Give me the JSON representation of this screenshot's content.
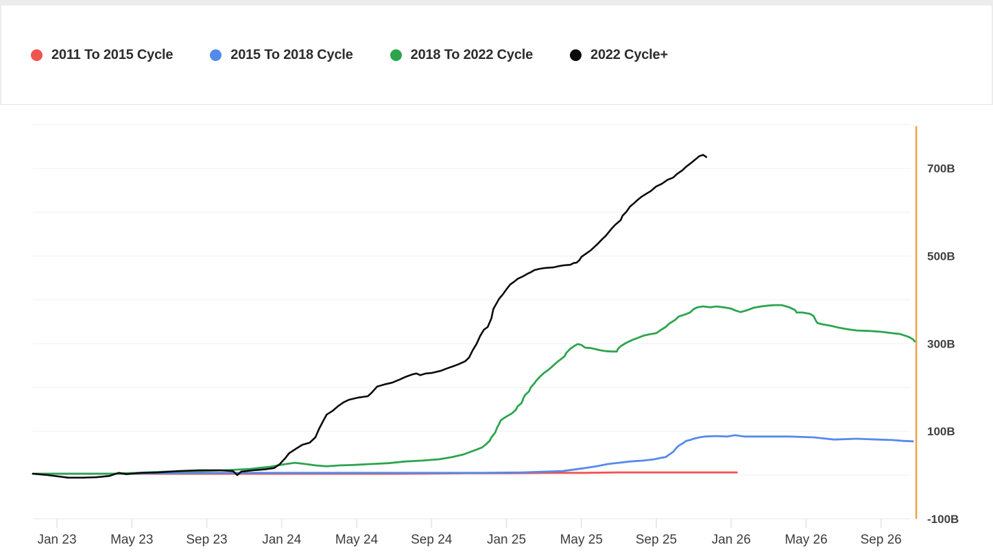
{
  "legend": {
    "items": [
      {
        "label": "2011 To 2015 Cycle",
        "color": "#f0544f"
      },
      {
        "label": "2015 To 2018 Cycle",
        "color": "#548aeb"
      },
      {
        "label": "2018 To 2022 Cycle",
        "color": "#2ca44e"
      },
      {
        "label": "2022 Cycle+",
        "color": "#0a0a0a"
      }
    ]
  },
  "chart_data": {
    "type": "line",
    "title": "",
    "xlabel": "",
    "ylabel": "",
    "unit": "B = billions",
    "legend_position": "top",
    "grid": true,
    "ylim": [
      -100,
      800
    ],
    "x_axis": {
      "tick_labels": [
        "Jan 23",
        "May 23",
        "Sep 23",
        "Jan 24",
        "May 24",
        "Sep 24",
        "Jan 25",
        "May 25",
        "Sep 25",
        "Jan 26",
        "May 26",
        "Sep 26"
      ],
      "months_per_tick": 4
    },
    "y_axis": {
      "tick_labels": [
        "700B",
        "500B",
        "300B",
        "100B",
        "-100B"
      ],
      "tick_values": [
        700,
        500,
        300,
        100,
        -100
      ],
      "grid_values": [
        800,
        700,
        600,
        500,
        400,
        300,
        200,
        100,
        0,
        -100
      ]
    },
    "marker_line": {
      "name": "cycle-end-marker",
      "color": "#e8a640",
      "position_months_from_first_tick": 45.88
    },
    "series": [
      {
        "name": "2011 To 2015 Cycle",
        "color": "#f0544f",
        "points_m_v": [
          [
            -1.28,
            3
          ],
          [
            2,
            3
          ],
          [
            6,
            3
          ],
          [
            10,
            3
          ],
          [
            14,
            3
          ],
          [
            18,
            3
          ],
          [
            22,
            4
          ],
          [
            24,
            4
          ],
          [
            26.3,
            5
          ],
          [
            28.1,
            5
          ],
          [
            29.9,
            6
          ],
          [
            31.7,
            6
          ],
          [
            33.6,
            6
          ],
          [
            35,
            6
          ],
          [
            36.3,
            6
          ]
        ]
      },
      {
        "name": "2015 To 2018 Cycle",
        "color": "#548aeb",
        "points_m_v": [
          [
            -1.28,
            3
          ],
          [
            2.4,
            3
          ],
          [
            7.9,
            5
          ],
          [
            13.4,
            5
          ],
          [
            18.9,
            5
          ],
          [
            22.6,
            5
          ],
          [
            24.8,
            6
          ],
          [
            27,
            9
          ],
          [
            28.2,
            16
          ],
          [
            28.8,
            20
          ],
          [
            29.4,
            25
          ],
          [
            30,
            28
          ],
          [
            30.6,
            31
          ],
          [
            31.3,
            33
          ],
          [
            31.9,
            36
          ],
          [
            32.2,
            39
          ],
          [
            32.5,
            41
          ],
          [
            32.7,
            47
          ],
          [
            32.9,
            53
          ],
          [
            33.1,
            63
          ],
          [
            33.2,
            67
          ],
          [
            33.4,
            72
          ],
          [
            33.6,
            78
          ],
          [
            33.8,
            80
          ],
          [
            34,
            83
          ],
          [
            34.3,
            86
          ],
          [
            34.6,
            88
          ],
          [
            35.2,
            89
          ],
          [
            35.8,
            88
          ],
          [
            36.2,
            91
          ],
          [
            36.7,
            88
          ],
          [
            37.2,
            88
          ],
          [
            38,
            88
          ],
          [
            39.1,
            88
          ],
          [
            40.4,
            86
          ],
          [
            41.5,
            81
          ],
          [
            42.7,
            83
          ],
          [
            43.8,
            81
          ],
          [
            44.6,
            80
          ],
          [
            45.2,
            78
          ],
          [
            45.7,
            77
          ]
        ]
      },
      {
        "name": "2018 To 2022 Cycle",
        "color": "#2ca44e",
        "points_m_v": [
          [
            -1.28,
            3
          ],
          [
            -0.1,
            3
          ],
          [
            1.4,
            3
          ],
          [
            2.8,
            3
          ],
          [
            4.3,
            5
          ],
          [
            5.9,
            8
          ],
          [
            7.6,
            9
          ],
          [
            9,
            11
          ],
          [
            10.3,
            14
          ],
          [
            11.4,
            19
          ],
          [
            12.2,
            25
          ],
          [
            12.7,
            28
          ],
          [
            13.3,
            25
          ],
          [
            13.8,
            22
          ],
          [
            14.4,
            20
          ],
          [
            15.1,
            22
          ],
          [
            15.8,
            23
          ],
          [
            16.7,
            25
          ],
          [
            17.7,
            27
          ],
          [
            18.6,
            31
          ],
          [
            19.5,
            33
          ],
          [
            20.4,
            36
          ],
          [
            21.1,
            41
          ],
          [
            21.7,
            47
          ],
          [
            22.2,
            55
          ],
          [
            22.4,
            58
          ],
          [
            22.7,
            63
          ],
          [
            22.9,
            70
          ],
          [
            23.1,
            78
          ],
          [
            23.2,
            86
          ],
          [
            23.4,
            97
          ],
          [
            23.5,
            108
          ],
          [
            23.6,
            116
          ],
          [
            23.7,
            125
          ],
          [
            23.9,
            131
          ],
          [
            24.1,
            136
          ],
          [
            24.3,
            141
          ],
          [
            24.5,
            149
          ],
          [
            24.6,
            157
          ],
          [
            24.8,
            164
          ],
          [
            24.9,
            175
          ],
          [
            25,
            183
          ],
          [
            25.2,
            191
          ],
          [
            25.3,
            200
          ],
          [
            25.5,
            210
          ],
          [
            25.6,
            216
          ],
          [
            25.8,
            225
          ],
          [
            26,
            233
          ],
          [
            26.2,
            239
          ],
          [
            26.4,
            246
          ],
          [
            26.6,
            254
          ],
          [
            26.8,
            261
          ],
          [
            27.1,
            271
          ],
          [
            27.2,
            279
          ],
          [
            27.4,
            288
          ],
          [
            27.6,
            294
          ],
          [
            27.8,
            299
          ],
          [
            28,
            297
          ],
          [
            28.2,
            291
          ],
          [
            28.5,
            290
          ],
          [
            28.7,
            288
          ],
          [
            29,
            285
          ],
          [
            29.3,
            283
          ],
          [
            29.6,
            282
          ],
          [
            29.9,
            282
          ],
          [
            29.95,
            288
          ],
          [
            30.1,
            294
          ],
          [
            30.4,
            302
          ],
          [
            30.7,
            308
          ],
          [
            31,
            313
          ],
          [
            31.3,
            318
          ],
          [
            31.6,
            321
          ],
          [
            32,
            324
          ],
          [
            32.2,
            330
          ],
          [
            32.5,
            338
          ],
          [
            32.7,
            346
          ],
          [
            33,
            354
          ],
          [
            33.2,
            362
          ],
          [
            33.5,
            366
          ],
          [
            33.8,
            371
          ],
          [
            34,
            379
          ],
          [
            34.2,
            383
          ],
          [
            34.5,
            385
          ],
          [
            34.9,
            383
          ],
          [
            35.2,
            385
          ],
          [
            35.6,
            383
          ],
          [
            36,
            380
          ],
          [
            36.2,
            376
          ],
          [
            36.5,
            372
          ],
          [
            36.9,
            377
          ],
          [
            37.2,
            382
          ],
          [
            37.6,
            385
          ],
          [
            38,
            387
          ],
          [
            38.3,
            388
          ],
          [
            38.7,
            388
          ],
          [
            39.1,
            383
          ],
          [
            39.4,
            377
          ],
          [
            39.5,
            371
          ],
          [
            39.8,
            371
          ],
          [
            40.2,
            368
          ],
          [
            40.4,
            363
          ],
          [
            40.5,
            354
          ],
          [
            40.6,
            347
          ],
          [
            40.9,
            344
          ],
          [
            41.3,
            341
          ],
          [
            41.7,
            337
          ],
          [
            42.2,
            333
          ],
          [
            42.7,
            330
          ],
          [
            43.4,
            329
          ],
          [
            44,
            327
          ],
          [
            44.6,
            324
          ],
          [
            45,
            322
          ],
          [
            45.3,
            318
          ],
          [
            45.5,
            315
          ],
          [
            45.7,
            310
          ],
          [
            45.8,
            305
          ]
        ]
      },
      {
        "name": "2022 Cycle+",
        "color": "#0a0a0a",
        "points_m_v": [
          [
            -1.28,
            3
          ],
          [
            -0.5,
            0
          ],
          [
            0.6,
            -6
          ],
          [
            1.4,
            -6
          ],
          [
            2.1,
            -5
          ],
          [
            2.8,
            -2
          ],
          [
            3.3,
            5
          ],
          [
            3.7,
            2
          ],
          [
            4.5,
            5
          ],
          [
            5.4,
            6
          ],
          [
            6.5,
            9
          ],
          [
            7.6,
            11
          ],
          [
            8.7,
            11
          ],
          [
            9.4,
            9
          ],
          [
            9.63,
            0
          ],
          [
            9.85,
            8
          ],
          [
            10.5,
            11
          ],
          [
            11.1,
            13
          ],
          [
            11.6,
            16
          ],
          [
            11.9,
            25
          ],
          [
            12.2,
            39
          ],
          [
            12.4,
            50
          ],
          [
            12.8,
            61
          ],
          [
            13.1,
            69
          ],
          [
            13.5,
            74
          ],
          [
            13.8,
            86
          ],
          [
            14,
            106
          ],
          [
            14.2,
            122
          ],
          [
            14.4,
            138
          ],
          [
            14.7,
            146
          ],
          [
            15,
            157
          ],
          [
            15.3,
            166
          ],
          [
            15.6,
            172
          ],
          [
            16.1,
            177
          ],
          [
            16.6,
            180
          ],
          [
            16.8,
            188
          ],
          [
            17.1,
            202
          ],
          [
            17.5,
            207
          ],
          [
            17.9,
            211
          ],
          [
            18.3,
            218
          ],
          [
            18.6,
            224
          ],
          [
            19,
            230
          ],
          [
            19.2,
            232
          ],
          [
            19.4,
            228
          ],
          [
            19.7,
            232
          ],
          [
            20,
            233
          ],
          [
            20.5,
            238
          ],
          [
            20.8,
            243
          ],
          [
            21.2,
            249
          ],
          [
            21.5,
            254
          ],
          [
            21.8,
            260
          ],
          [
            22,
            268
          ],
          [
            22.2,
            285
          ],
          [
            22.4,
            299
          ],
          [
            22.6,
            318
          ],
          [
            22.8,
            332
          ],
          [
            23,
            338
          ],
          [
            23.2,
            358
          ],
          [
            23.3,
            379
          ],
          [
            23.5,
            394
          ],
          [
            23.6,
            402
          ],
          [
            23.8,
            412
          ],
          [
            24,
            424
          ],
          [
            24.2,
            435
          ],
          [
            24.4,
            441
          ],
          [
            24.6,
            448
          ],
          [
            24.9,
            454
          ],
          [
            25.1,
            459
          ],
          [
            25.3,
            463
          ],
          [
            25.5,
            468
          ],
          [
            25.8,
            471
          ],
          [
            26.1,
            473
          ],
          [
            26.5,
            474
          ],
          [
            26.8,
            477
          ],
          [
            27.1,
            479
          ],
          [
            27.4,
            480
          ],
          [
            27.6,
            484
          ],
          [
            27.75,
            485
          ],
          [
            27.9,
            491
          ],
          [
            28,
            498
          ],
          [
            28.2,
            504
          ],
          [
            28.5,
            513
          ],
          [
            28.7,
            521
          ],
          [
            28.9,
            529
          ],
          [
            29.1,
            538
          ],
          [
            29.3,
            546
          ],
          [
            29.6,
            562
          ],
          [
            29.8,
            571
          ],
          [
            30.1,
            582
          ],
          [
            30.2,
            592
          ],
          [
            30.4,
            601
          ],
          [
            30.6,
            613
          ],
          [
            30.8,
            620
          ],
          [
            31,
            628
          ],
          [
            31.2,
            635
          ],
          [
            31.5,
            643
          ],
          [
            31.7,
            648
          ],
          [
            32,
            659
          ],
          [
            32.3,
            665
          ],
          [
            32.6,
            674
          ],
          [
            32.9,
            679
          ],
          [
            33.1,
            687
          ],
          [
            33.4,
            696
          ],
          [
            33.6,
            704
          ],
          [
            33.9,
            714
          ],
          [
            34.1,
            721
          ],
          [
            34.3,
            728
          ],
          [
            34.5,
            731
          ],
          [
            34.67,
            726
          ]
        ]
      }
    ]
  }
}
